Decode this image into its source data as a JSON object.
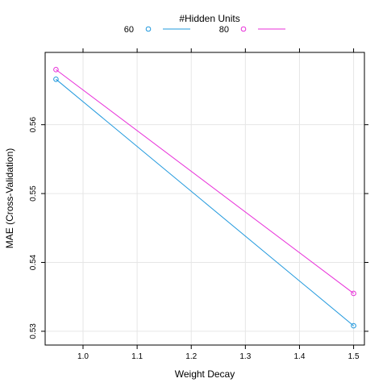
{
  "chart_data": {
    "type": "line",
    "legend_title": "#Hidden Units",
    "legend_placement": "top",
    "xlabel": "Weight Decay",
    "ylabel": "MAE (Cross-Validation)",
    "xlim": [
      0.93,
      1.52
    ],
    "ylim": [
      0.528,
      0.5705
    ],
    "xticks": [
      1.0,
      1.1,
      1.2,
      1.3,
      1.4,
      1.5
    ],
    "xtick_labels": [
      "1.0",
      "1.1",
      "1.2",
      "1.3",
      "1.4",
      "1.5"
    ],
    "yticks": [
      0.53,
      0.54,
      0.55,
      0.56
    ],
    "ytick_labels": [
      "0.53",
      "0.54",
      "0.55",
      "0.56"
    ],
    "grid": true,
    "series": [
      {
        "name": "60",
        "color": "#1f98dd",
        "x": [
          0.95,
          1.5
        ],
        "y": [
          0.5666,
          0.5308
        ]
      },
      {
        "name": "80",
        "color": "#e82fd9",
        "x": [
          0.95,
          1.5
        ],
        "y": [
          0.568,
          0.5355
        ]
      }
    ]
  }
}
